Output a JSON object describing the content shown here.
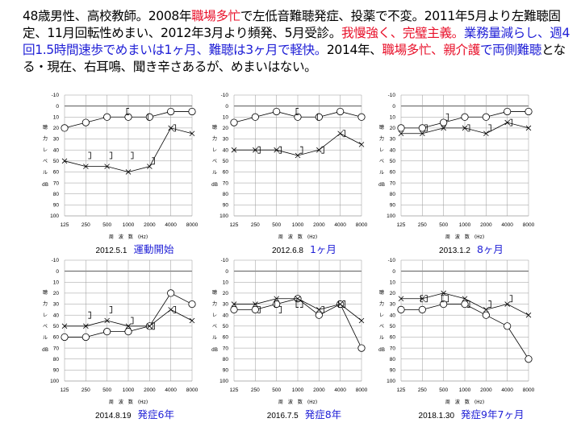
{
  "header": {
    "segments": [
      {
        "text": "48歳男性、高校教師。2008年",
        "style": "plain"
      },
      {
        "text": "職場多忙",
        "style": "red"
      },
      {
        "text": "で左低音難聴発症、投薬で不変。2011年5月より左難聴固定、11月回転性めまい、2012年3月より頻発、5月受診。",
        "style": "plain"
      },
      {
        "text": "我慢強く、完璧主義。",
        "style": "red"
      },
      {
        "text": "業務量減らし、週4回1.5時間速歩でめまいは1ヶ月、難聴は3ヶ月で軽快。",
        "style": "blue"
      },
      {
        "text": "2014年、",
        "style": "plain"
      },
      {
        "text": "職場多忙、親介護",
        "style": "red"
      },
      {
        "text": "で両側難聴",
        "style": "blue"
      },
      {
        "text": "となる・現在、右耳鳴、聞き辛さあるが、めまいはない。",
        "style": "plain"
      }
    ]
  },
  "axis": {
    "y_ticks": [
      -10,
      0,
      10,
      20,
      30,
      40,
      50,
      60,
      70,
      80,
      90,
      100
    ],
    "x_tick_labels": [
      "125",
      "250",
      "500",
      "1000",
      "2000",
      "4000",
      "8000"
    ],
    "ylabel_chars": [
      "聴",
      "力",
      "レ",
      "ベ",
      "ル"
    ],
    "yunit": "dB",
    "xlabel": "周　波　数　(Hz)"
  },
  "colors": {
    "stage_label": "#1f1fd6",
    "line": "#000000",
    "red_text": "#e8102a",
    "blue_text": "#1f1fd6"
  },
  "chart_data": [
    {
      "type": "line",
      "date": "2012.5.1",
      "stage_label": "運動開始",
      "x": [
        125,
        250,
        500,
        1000,
        2000,
        4000,
        8000
      ],
      "ylim": [
        -10,
        100
      ],
      "y_inverted": true,
      "series": [
        {
          "marker": "circle",
          "values": [
            20,
            15,
            10,
            10,
            10,
            5,
            5
          ]
        },
        {
          "marker": "cross",
          "values": [
            50,
            55,
            55,
            60,
            55,
            20,
            25
          ]
        },
        {
          "marker": "bracket-left",
          "values": [
            null,
            null,
            null,
            5,
            10,
            null,
            null
          ]
        },
        {
          "marker": "bracket-right",
          "values": [
            null,
            45,
            45,
            45,
            50,
            20,
            null
          ]
        }
      ]
    },
    {
      "type": "line",
      "date": "2012.6.8",
      "stage_label": "1ヶ月",
      "x": [
        125,
        250,
        500,
        1000,
        2000,
        4000,
        8000
      ],
      "ylim": [
        -10,
        100
      ],
      "y_inverted": true,
      "series": [
        {
          "marker": "circle",
          "values": [
            15,
            10,
            5,
            10,
            10,
            5,
            10
          ]
        },
        {
          "marker": "cross",
          "values": [
            40,
            40,
            40,
            45,
            40,
            25,
            35
          ]
        },
        {
          "marker": "bracket-left",
          "values": [
            null,
            null,
            null,
            5,
            10,
            null,
            null
          ]
        },
        {
          "marker": "bracket-right",
          "values": [
            null,
            40,
            40,
            40,
            40,
            25,
            null
          ]
        }
      ]
    },
    {
      "type": "line",
      "date": "2013.1.2",
      "stage_label": "8ヶ月",
      "x": [
        125,
        250,
        500,
        1000,
        2000,
        4000,
        8000
      ],
      "ylim": [
        -10,
        100
      ],
      "y_inverted": true,
      "series": [
        {
          "marker": "circle",
          "values": [
            20,
            20,
            15,
            10,
            10,
            5,
            5
          ]
        },
        {
          "marker": "cross",
          "values": [
            25,
            25,
            20,
            20,
            25,
            15,
            20
          ]
        },
        {
          "marker": "bracket-left",
          "values": [
            null,
            null,
            null,
            null,
            null,
            null,
            null
          ]
        },
        {
          "marker": "bracket-right",
          "values": [
            null,
            20,
            10,
            20,
            20,
            15,
            null
          ]
        }
      ]
    },
    {
      "type": "line",
      "date": "2014.8.19",
      "stage_label": "発症6年",
      "x": [
        125,
        250,
        500,
        1000,
        2000,
        4000,
        8000
      ],
      "ylim": [
        -10,
        100
      ],
      "y_inverted": true,
      "series": [
        {
          "marker": "circle",
          "values": [
            60,
            60,
            55,
            55,
            50,
            20,
            30
          ]
        },
        {
          "marker": "cross",
          "values": [
            50,
            50,
            45,
            50,
            50,
            35,
            45
          ]
        },
        {
          "marker": "bracket-left",
          "values": [
            null,
            null,
            null,
            null,
            null,
            null,
            null
          ]
        },
        {
          "marker": "bracket-right",
          "values": [
            null,
            40,
            35,
            45,
            50,
            35,
            null
          ]
        }
      ]
    },
    {
      "type": "line",
      "date": "2016.7.5",
      "stage_label": "発症8年",
      "x": [
        125,
        250,
        500,
        1000,
        2000,
        4000,
        8000
      ],
      "ylim": [
        -10,
        100
      ],
      "y_inverted": true,
      "series": [
        {
          "marker": "circle",
          "values": [
            35,
            35,
            30,
            25,
            40,
            30,
            70
          ]
        },
        {
          "marker": "cross",
          "values": [
            30,
            30,
            25,
            25,
            35,
            30,
            45
          ]
        },
        {
          "marker": "bracket-left",
          "values": [
            null,
            null,
            30,
            30,
            null,
            30,
            null
          ]
        },
        {
          "marker": "bracket-right",
          "values": [
            null,
            35,
            35,
            30,
            35,
            30,
            null
          ]
        }
      ]
    },
    {
      "type": "line",
      "date": "2018.1.30",
      "stage_label": "発症9年7ヶ月",
      "x": [
        125,
        250,
        500,
        1000,
        2000,
        4000,
        8000
      ],
      "ylim": [
        -10,
        100
      ],
      "y_inverted": true,
      "series": [
        {
          "marker": "circle",
          "values": [
            35,
            35,
            30,
            30,
            40,
            50,
            80
          ]
        },
        {
          "marker": "cross",
          "values": [
            25,
            25,
            20,
            25,
            35,
            30,
            40
          ]
        },
        {
          "marker": "bracket-left",
          "values": [
            null,
            25,
            25,
            null,
            null,
            null,
            null
          ]
        },
        {
          "marker": "bracket-right",
          "values": [
            null,
            25,
            25,
            30,
            30,
            25,
            null
          ]
        }
      ]
    }
  ]
}
